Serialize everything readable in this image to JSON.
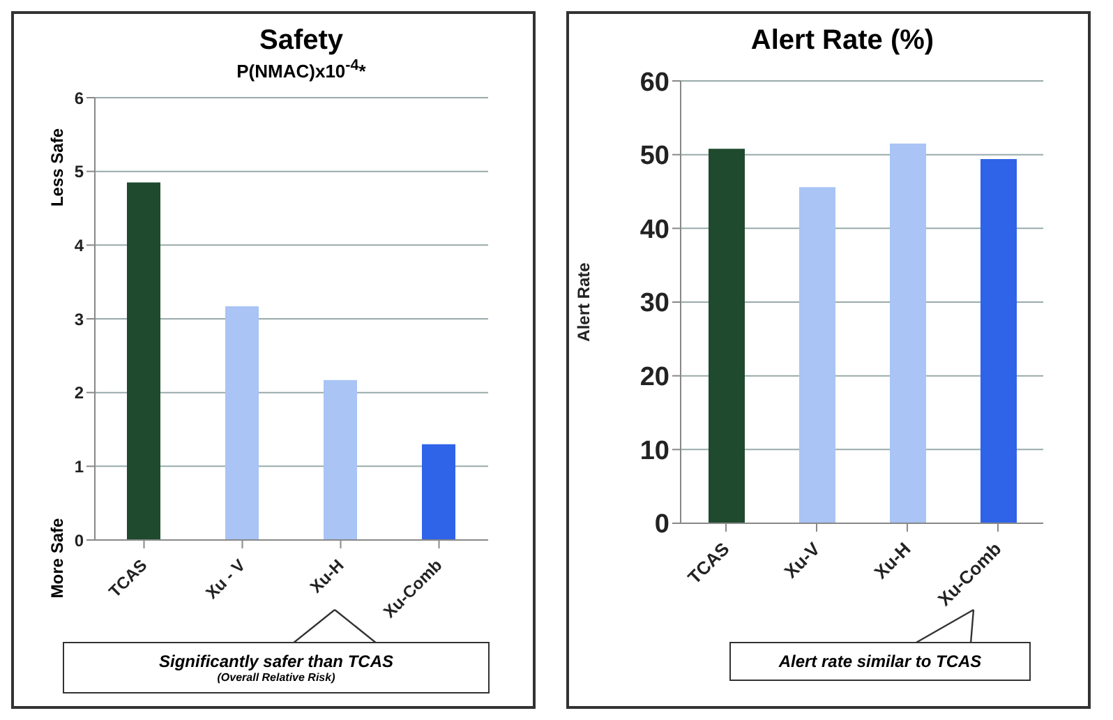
{
  "chart_data": [
    {
      "type": "bar",
      "title": "Safety",
      "subtitle": "P(NMAC)x10$^{-4}$*",
      "categories": [
        "TCAS",
        "Xu - V",
        "Xu-H",
        "Xu-Comb"
      ],
      "values": [
        4.85,
        3.17,
        2.17,
        1.3
      ],
      "colors": [
        "#1f4a2e",
        "#a9c4f5",
        "#a9c4f5",
        "#2f63e8"
      ],
      "ylim": [
        0,
        6
      ],
      "yticks": [
        0,
        1,
        2,
        3,
        4,
        5,
        6
      ],
      "grid": "y",
      "annotations": [
        "Less Safe",
        "More Safe",
        "Significantly safer than TCAS",
        "(Overall Relative Risk)"
      ]
    },
    {
      "type": "bar",
      "title": "Alert Rate (%)",
      "ylabel": "Alert Rate",
      "categories": [
        "TCAS",
        "Xu-V",
        "Xu-H",
        "Xu-Comb"
      ],
      "values": [
        50.8,
        45.6,
        51.5,
        49.4
      ],
      "colors": [
        "#1f4a2e",
        "#a9c4f5",
        "#a9c4f5",
        "#2f63e8"
      ],
      "ylim": [
        0,
        60
      ],
      "yticks": [
        0,
        10,
        20,
        30,
        40,
        50,
        60
      ],
      "grid": "y",
      "annotations": [
        "Alert rate similar to TCAS"
      ]
    }
  ]
}
